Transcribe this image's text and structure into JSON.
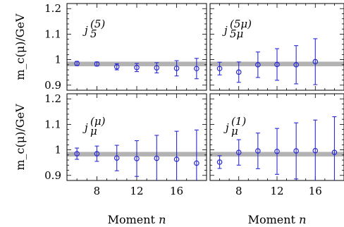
{
  "colors": {
    "points": "#2b2bd6",
    "band": "#b3b3b3",
    "axes": "#000000"
  },
  "chart_data": [
    {
      "type": "scatter",
      "panel": "top-left",
      "panel_label_base": "j",
      "panel_label_sub": "5",
      "panel_label_sup": "(5)",
      "x": [
        6,
        8,
        10,
        12,
        14,
        16,
        18
      ],
      "y": [
        0.985,
        0.983,
        0.972,
        0.969,
        0.968,
        0.966,
        0.965
      ],
      "yerr": [
        0.008,
        0.008,
        0.012,
        0.016,
        0.02,
        0.03,
        0.04
      ],
      "band": [
        0.974,
        0.992
      ],
      "xlim": [
        5,
        19
      ],
      "ylim": [
        0.88,
        1.22
      ],
      "xticks": [],
      "yticks": [
        "0.9",
        "1",
        "1.1",
        "1.2"
      ],
      "ylabel": "m_c(μ)/GeV",
      "xlabel": ""
    },
    {
      "type": "scatter",
      "panel": "top-right",
      "panel_label_base": "j",
      "panel_label_sub": "5μ",
      "panel_label_sup": "(5μ)",
      "x": [
        6,
        8,
        10,
        12,
        14,
        16
      ],
      "y": [
        0.965,
        0.951,
        0.98,
        0.981,
        0.98,
        0.992
      ],
      "yerr": [
        0.025,
        0.04,
        0.05,
        0.062,
        0.075,
        0.09
      ],
      "band": [
        0.974,
        0.992
      ],
      "xlim": [
        5,
        19
      ],
      "ylim": [
        0.88,
        1.22
      ],
      "xticks": [],
      "yticks": [],
      "ylabel": "",
      "xlabel": ""
    },
    {
      "type": "scatter",
      "panel": "bottom-left",
      "panel_label_base": "j",
      "panel_label_sub": "μ",
      "panel_label_sup": "(μ)",
      "x": [
        6,
        8,
        10,
        12,
        14,
        16,
        18
      ],
      "y": [
        0.985,
        0.985,
        0.968,
        0.966,
        0.967,
        0.963,
        0.948
      ],
      "yerr": [
        0.022,
        0.03,
        0.05,
        0.07,
        0.09,
        0.11,
        0.13
      ],
      "band": [
        0.974,
        0.992
      ],
      "xlim": [
        5,
        19
      ],
      "ylim": [
        0.88,
        1.22
      ],
      "xticks": [
        "8",
        "12",
        "16"
      ],
      "yticks": [
        "0.9",
        "1",
        "1.1",
        "1.2"
      ],
      "ylabel": "m_c(μ)/GeV",
      "xlabel": "Moment n"
    },
    {
      "type": "scatter",
      "panel": "bottom-right",
      "panel_label_base": "j",
      "panel_label_sub": "μ",
      "panel_label_sup": "(1)",
      "x": [
        6,
        8,
        10,
        12,
        14,
        16,
        18
      ],
      "y": [
        0.952,
        0.99,
        0.996,
        0.994,
        0.996,
        0.997,
        0.99
      ],
      "yerr": [
        0.025,
        0.05,
        0.07,
        0.09,
        0.11,
        0.12,
        0.14
      ],
      "band": [
        0.974,
        0.992
      ],
      "xlim": [
        5,
        19
      ],
      "ylim": [
        0.88,
        1.22
      ],
      "xticks": [
        "8",
        "12",
        "16"
      ],
      "yticks": [],
      "ylabel": "",
      "xlabel": "Moment n"
    }
  ]
}
